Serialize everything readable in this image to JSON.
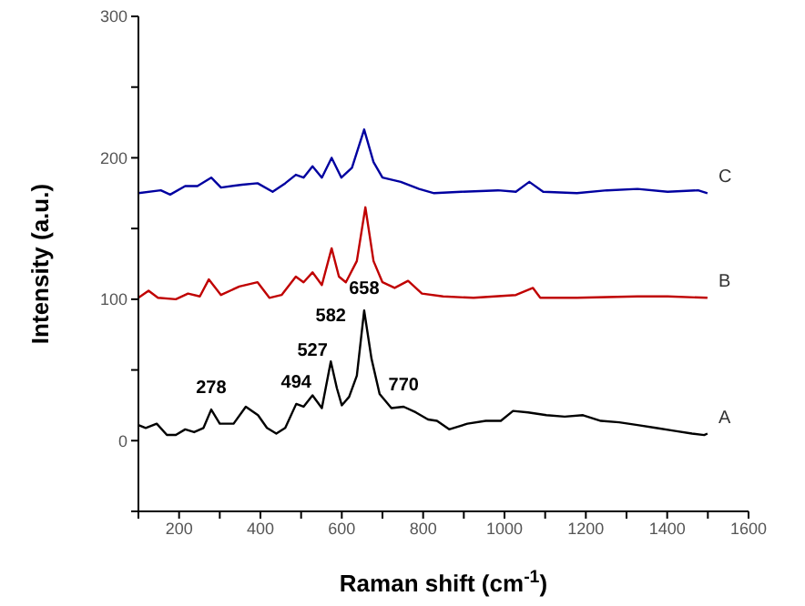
{
  "chart_data": {
    "type": "line",
    "xlabel": "Raman shift (cm$^{-1}$)",
    "ylabel": "Intensity (a.u.)",
    "xlim": [
      100,
      1600
    ],
    "ylim": [
      -50,
      300
    ],
    "xticks": [
      {
        "value": 100,
        "label": null
      },
      200,
      {
        "value": 300,
        "label": null
      },
      400,
      {
        "value": 500,
        "label": null
      },
      600,
      {
        "value": 700,
        "label": null
      },
      800,
      {
        "value": 900,
        "label": null
      },
      1000,
      {
        "value": 1100,
        "label": null
      },
      1200,
      {
        "value": 1300,
        "label": null
      },
      1400,
      {
        "value": 1500,
        "label": null
      },
      1600
    ],
    "yticks": [
      {
        "value": -50,
        "label": null
      },
      0,
      {
        "value": 50,
        "label": null
      },
      100,
      {
        "value": 150,
        "label": null
      },
      200,
      {
        "value": 250,
        "label": null
      },
      300
    ],
    "marker": "none",
    "line_style": "solid",
    "series": [
      {
        "name": "A",
        "color": "#000000",
        "x": [
          100,
          118,
          145,
          170,
          192,
          215,
          237,
          260,
          279,
          300,
          334,
          364,
          394,
          416,
          439,
          461,
          488,
          506,
          528,
          551,
          573,
          588,
          600,
          618,
          637,
          655,
          673,
          693,
          722,
          752,
          782,
          812,
          834,
          864,
          909,
          954,
          991,
          1021,
          1058,
          1103,
          1148,
          1193,
          1237,
          1282,
          1327,
          1372,
          1416,
          1461,
          1491,
          1499
        ],
        "values": [
          11,
          9,
          12,
          4,
          4,
          8,
          6,
          9,
          22,
          12,
          12,
          24,
          18,
          9,
          5,
          9,
          26,
          24,
          32,
          23,
          56,
          37,
          25,
          31,
          46,
          92,
          58,
          33,
          23,
          24,
          20,
          15,
          14,
          8,
          12,
          14,
          14,
          21,
          20,
          18,
          17,
          18,
          14,
          13,
          11,
          9,
          7,
          5,
          4,
          5
        ]
      },
      {
        "name": "B",
        "color": "#c00000",
        "x": [
          100,
          125,
          148,
          192,
          222,
          251,
          273,
          303,
          348,
          393,
          422,
          452,
          487,
          506,
          528,
          551,
          575,
          593,
          610,
          637,
          658,
          678,
          700,
          730,
          763,
          797,
          849,
          924,
          1028,
          1070,
          1088,
          1178,
          1327,
          1401,
          1499
        ],
        "values": [
          101,
          106,
          101,
          100,
          104,
          102,
          114,
          103,
          109,
          112,
          101,
          103,
          116,
          112,
          119,
          110,
          136,
          116,
          112,
          127,
          165,
          127,
          112,
          108,
          113,
          104,
          102,
          101,
          103,
          108,
          101,
          101,
          102,
          102,
          101
        ]
      },
      {
        "name": "C",
        "color": "#0000a0",
        "x": [
          100,
          155,
          178,
          215,
          245,
          279,
          303,
          355,
          393,
          430,
          461,
          487,
          506,
          528,
          551,
          575,
          599,
          625,
          655,
          678,
          700,
          745,
          790,
          827,
          894,
          984,
          1028,
          1061,
          1095,
          1178,
          1252,
          1327,
          1401,
          1476,
          1499
        ],
        "values": [
          175,
          177,
          174,
          180,
          180,
          186,
          179,
          181,
          182,
          176,
          182,
          188,
          186,
          194,
          186,
          200,
          186,
          193,
          220,
          197,
          186,
          183,
          178,
          175,
          176,
          177,
          176,
          183,
          176,
          175,
          177,
          178,
          176,
          177,
          175
        ]
      }
    ],
    "annotations": [
      {
        "text": "278",
        "x": 279,
        "y": 22
      },
      {
        "text": "494",
        "x": 488,
        "y": 26
      },
      {
        "text": "527",
        "x": 528,
        "y": 32
      },
      {
        "text": "582",
        "x": 573,
        "y": 56
      },
      {
        "text": "658",
        "x": 655,
        "y": 92
      },
      {
        "text": "770",
        "x": 752,
        "y": 24
      }
    ]
  }
}
